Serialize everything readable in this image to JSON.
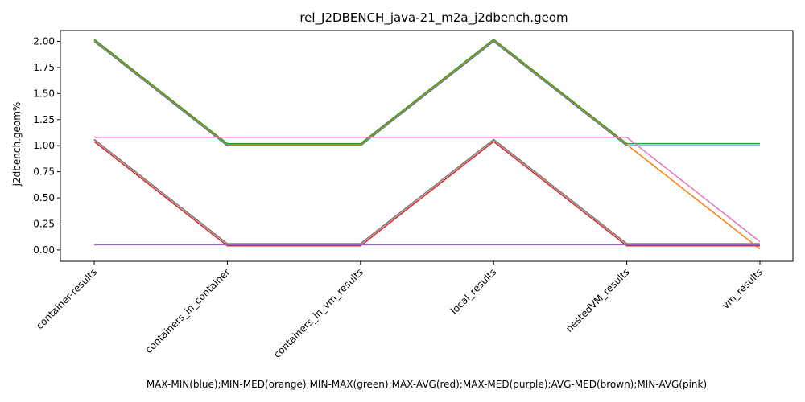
{
  "chart_data": {
    "type": "line",
    "title": "rel_J2DBENCH_java-21_m2a_j2dbench.geom",
    "xlabel": "MAX-MIN(blue);MIN-MED(orange);MIN-MAX(green);MAX-AVG(red);MAX-MED(purple);AVG-MED(brown);MIN-AVG(pink)",
    "ylabel": "j2dbench.geom%",
    "categories": [
      "container-results",
      "containers_in_container",
      "containers_in_vm_results",
      "local_results",
      "nestedVM_results",
      "vm_results"
    ],
    "ylim": [
      -0.1,
      2.12
    ],
    "yticks": [
      "0.00",
      "0.25",
      "0.50",
      "0.75",
      "1.00",
      "1.25",
      "1.50",
      "1.75",
      "2.00"
    ],
    "grid": false,
    "series": [
      {
        "color": "#1f77b4",
        "values": [
          2.0,
          1.0,
          1.0,
          2.0,
          1.0,
          1.0
        ]
      },
      {
        "color": "#ff7f0e",
        "values": [
          2.01,
          1.01,
          1.01,
          2.01,
          1.01,
          0.01
        ]
      },
      {
        "color": "#2ca02c",
        "values": [
          2.02,
          1.02,
          1.02,
          2.02,
          1.02,
          1.02
        ]
      },
      {
        "color": "#d62728",
        "values": [
          1.04,
          0.04,
          0.04,
          1.04,
          0.04,
          0.04
        ]
      },
      {
        "color": "#9467bd",
        "values": [
          0.05,
          0.05,
          0.05,
          0.05,
          0.05,
          0.05
        ]
      },
      {
        "color": "#8c564b",
        "values": [
          1.06,
          0.06,
          0.06,
          1.06,
          0.06,
          0.06
        ]
      },
      {
        "color": "#e377c2",
        "values": [
          1.08,
          1.08,
          1.08,
          1.08,
          1.08,
          0.08
        ]
      },
      {
        "color": "#7f7f7f",
        "values": [
          1.06,
          0.06,
          0.06,
          1.06,
          0.06,
          0.06
        ]
      }
    ]
  }
}
